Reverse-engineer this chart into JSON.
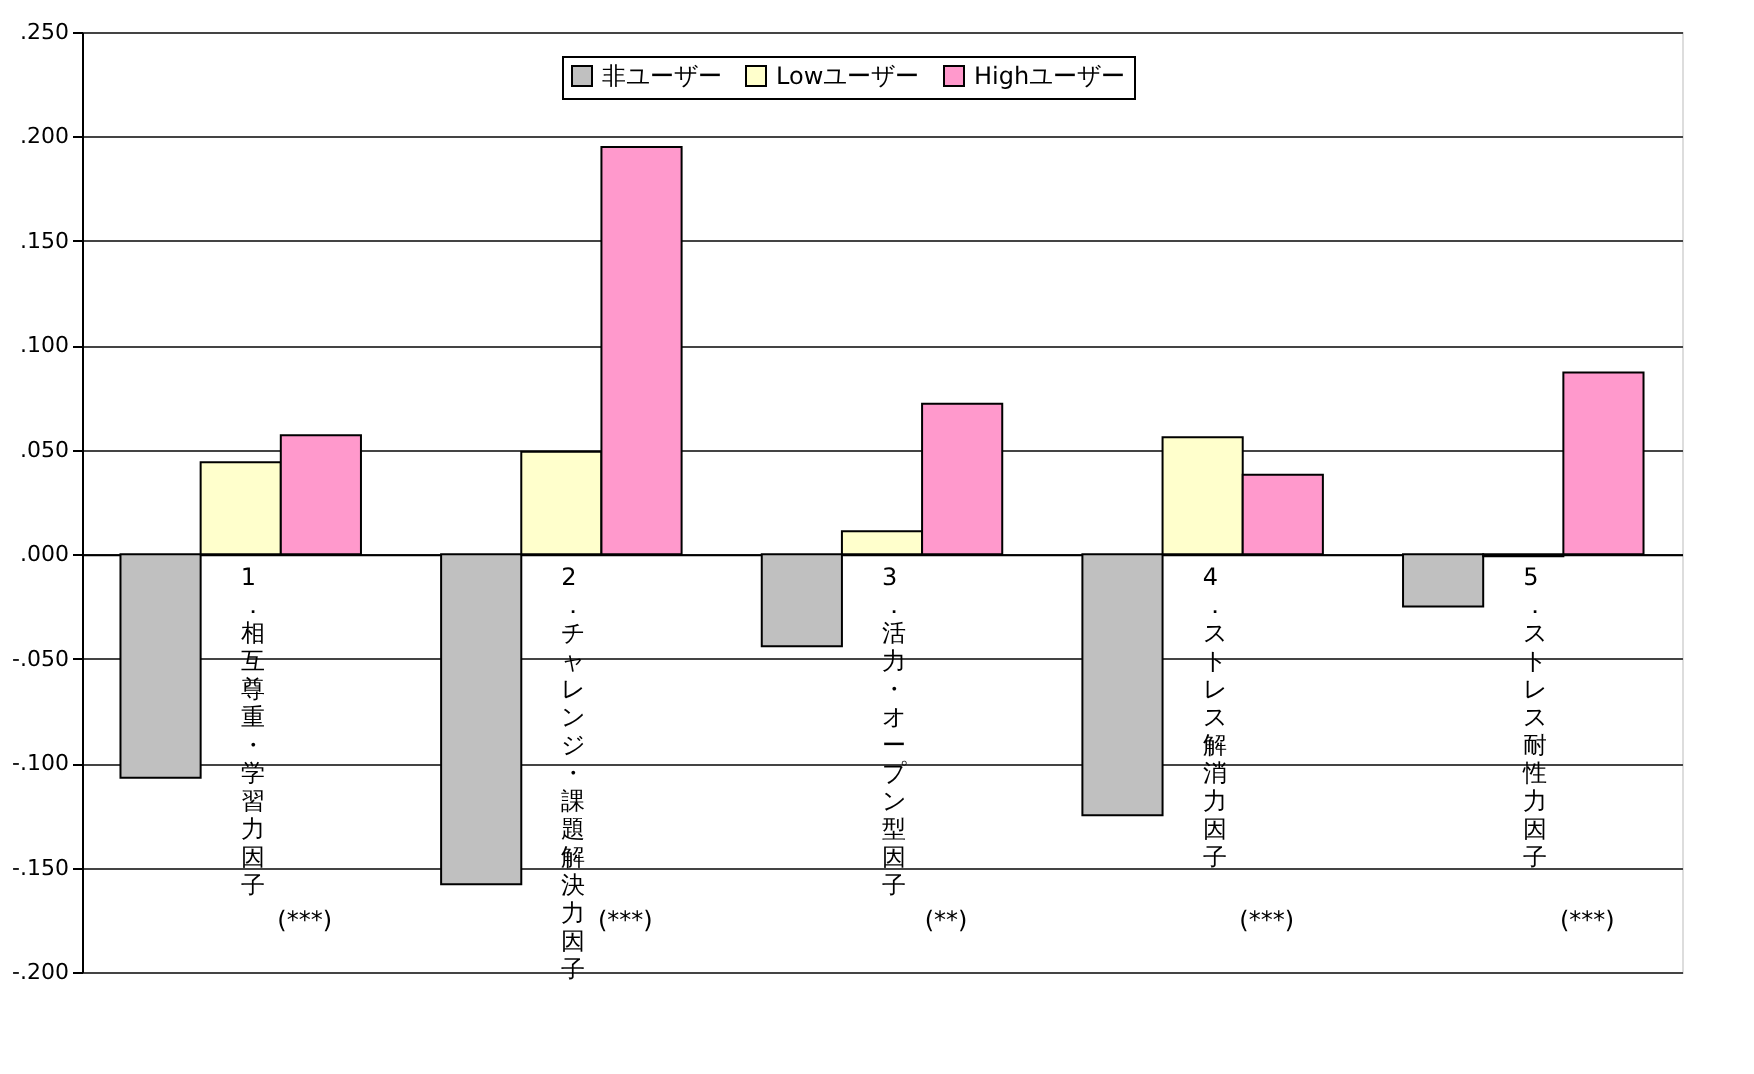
{
  "chart_data": {
    "type": "bar",
    "categories": [
      "1．相互尊重・学習力因子",
      "2．チャレンジ・課題解決力因子",
      "3．活力・オープン型因子",
      "4．ストレス解消力因子",
      "5．ストレス耐性力因子"
    ],
    "series": [
      {
        "name": "非ユーザー",
        "color": "#c0c0c0",
        "values": [
          -0.107,
          -0.158,
          -0.044,
          -0.125,
          -0.025
        ]
      },
      {
        "name": "Lowユーザー",
        "color": "#ffffcc",
        "values": [
          0.044,
          0.049,
          0.011,
          0.056,
          -0.001
        ]
      },
      {
        "name": "Highユーザー",
        "color": "#ff99cc",
        "values": [
          0.057,
          0.195,
          0.072,
          0.038,
          0.087
        ]
      }
    ],
    "ylim": [
      -0.2,
      0.25
    ],
    "yticks": [
      {
        "value": -0.2,
        "label": "-.200"
      },
      {
        "value": -0.15,
        "label": "-.150"
      },
      {
        "value": -0.1,
        "label": "-.100"
      },
      {
        "value": -0.05,
        "label": "-.050"
      },
      {
        "value": 0,
        "label": ".000"
      },
      {
        "value": 0.05,
        "label": ".050"
      },
      {
        "value": 0.1,
        "label": ".100"
      },
      {
        "value": 0.15,
        "label": ".150"
      },
      {
        "value": 0.2,
        "label": ".200"
      },
      {
        "value": 0.25,
        "label": ".250"
      }
    ],
    "annotations": [
      "(***)",
      "(***)",
      "(**)",
      "(***)",
      "(***)"
    ],
    "grid": "y",
    "legend": "top"
  }
}
